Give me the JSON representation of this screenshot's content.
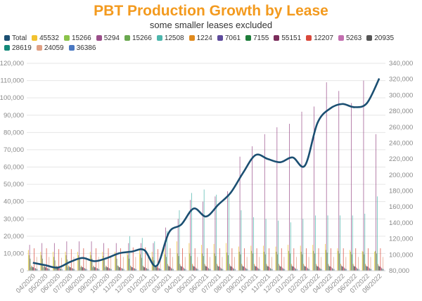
{
  "chart_data": {
    "type": "bar",
    "title": "PBT Production Growth by Lease",
    "subtitle": "some smaller leases excluded",
    "xlabel": "",
    "ylabel": "",
    "ylim": [
      0,
      120000
    ],
    "y2lim": [
      80000,
      340000
    ],
    "grid": true,
    "legend_position": "top-left",
    "categories": [
      "04/2020",
      "05/2020",
      "06/2020",
      "07/2020",
      "08/2020",
      "09/2020",
      "10/2020",
      "11/2020",
      "12/2020",
      "01/2021",
      "02/2021",
      "03/2021",
      "04/2021",
      "05/2021",
      "06/2021",
      "07/2021",
      "08/2021",
      "09/2021",
      "10/2021",
      "11/2021",
      "12/2021",
      "01/2022",
      "02/2022",
      "03/2022",
      "04/2022",
      "05/2022",
      "06/2022",
      "07/2022",
      "08/2022"
    ],
    "yticks": [
      "0",
      "10,000",
      "20,000",
      "30,000",
      "40,000",
      "50,000",
      "60,000",
      "70,000",
      "80,000",
      "90,000",
      "100,000",
      "110,000",
      "120,000"
    ],
    "y2ticks": [
      "80,000",
      "100,000",
      "120,000",
      "140,000",
      "160,000",
      "180,000",
      "200,000",
      "220,000",
      "240,000",
      "260,000",
      "280,000",
      "300,000",
      "320,000",
      "340,000"
    ],
    "line_series": {
      "name": "Total",
      "axis": "right",
      "color": "#1b4f72",
      "values": [
        90000,
        87000,
        84000,
        91000,
        96000,
        92000,
        96000,
        102000,
        104000,
        106000,
        86000,
        128000,
        138000,
        158000,
        148000,
        163000,
        178000,
        203000,
        225000,
        220000,
        216000,
        222000,
        212000,
        265000,
        283000,
        289000,
        285000,
        290000,
        321000
      ]
    },
    "series": [
      {
        "name": "45532",
        "color": "#f2c230",
        "values": [
          12000,
          11000,
          11000,
          11000,
          11000,
          11000,
          11000,
          11000,
          11500,
          12000,
          11000,
          16000,
          17000,
          16000,
          15000,
          15500,
          16000,
          14000,
          14500,
          14500,
          14000,
          15000,
          14500,
          15000,
          15500,
          13000,
          12000,
          11500,
          11000
        ]
      },
      {
        "name": "15266",
        "color": "#8bc34a",
        "values": [
          9000,
          9000,
          8000,
          9000,
          9000,
          9000,
          8500,
          9000,
          9000,
          9500,
          8000,
          9500,
          10000,
          10000,
          10000,
          10000,
          10500,
          11000,
          11500,
          11000,
          11000,
          11500,
          11000,
          11500,
          12000,
          11500,
          11000,
          11000,
          11500
        ]
      },
      {
        "name": "5294",
        "color": "#9b4f8a",
        "values": [
          15000,
          16000,
          16000,
          17000,
          17000,
          17000,
          16000,
          16000,
          16000,
          16000,
          16000,
          25000,
          30000,
          41000,
          40000,
          43000,
          46000,
          66000,
          72000,
          79000,
          83000,
          85000,
          92000,
          95000,
          109000,
          104000,
          97000,
          110000,
          79000
        ]
      },
      {
        "name": "15266",
        "color": "#6aa84f",
        "values": [
          7000,
          7000,
          6000,
          6500,
          7000,
          7000,
          6500,
          7000,
          7000,
          7500,
          6000,
          8000,
          8500,
          8500,
          8500,
          8500,
          9000,
          9500,
          10000,
          9500,
          9500,
          10000,
          9500,
          10000,
          10500,
          10000,
          9500,
          9500,
          10000
        ]
      },
      {
        "name": "12508",
        "color": "#4db6ac",
        "values": [
          2000,
          2000,
          2000,
          2000,
          2000,
          2000,
          2000,
          3000,
          20000,
          19000,
          17000,
          23000,
          35000,
          45000,
          47000,
          44000,
          43000,
          35000,
          31000,
          30000,
          29000,
          28000,
          30000,
          32000,
          32000,
          32000,
          32000,
          33000,
          43000
        ]
      },
      {
        "name": "1224",
        "color": "#e08a1e",
        "values": [
          3000,
          3000,
          3000,
          3000,
          3000,
          3000,
          3000,
          3000,
          3000,
          3000,
          3000,
          4000,
          4000,
          4000,
          4000,
          4000,
          4000,
          4000,
          4000,
          4000,
          4000,
          4000,
          4000,
          4000,
          4000,
          4000,
          4000,
          4000,
          4000
        ]
      },
      {
        "name": "7061",
        "color": "#5e4b9c",
        "values": [
          2500,
          2500,
          2500,
          2500,
          2500,
          2500,
          2500,
          2500,
          2500,
          2500,
          2500,
          3000,
          3000,
          3000,
          3000,
          3000,
          3000,
          3000,
          3000,
          3000,
          3000,
          3000,
          3000,
          3000,
          3000,
          3000,
          3000,
          3000,
          3000
        ]
      },
      {
        "name": "7155",
        "color": "#1e7d3a",
        "values": [
          2000,
          2000,
          2000,
          2000,
          2000,
          2000,
          2000,
          2000,
          2000,
          2000,
          2000,
          2500,
          2500,
          2500,
          2500,
          2500,
          2500,
          2500,
          2500,
          2500,
          2500,
          2500,
          2500,
          2500,
          2500,
          2500,
          2500,
          2500,
          2500
        ]
      },
      {
        "name": "55151",
        "color": "#7b2d5b",
        "values": [
          2000,
          2000,
          2000,
          2000,
          2000,
          2000,
          2000,
          2000,
          2000,
          2000,
          2000,
          2500,
          2500,
          2500,
          2500,
          2500,
          2500,
          2500,
          2500,
          2500,
          2500,
          2500,
          2500,
          2500,
          2500,
          2500,
          2500,
          2500,
          2500
        ]
      },
      {
        "name": "12207",
        "color": "#d9483b",
        "values": [
          13000,
          13000,
          12500,
          12500,
          13000,
          13000,
          13000,
          13000,
          13500,
          13500,
          12500,
          13000,
          13000,
          13000,
          13000,
          13000,
          13000,
          13000,
          13000,
          13000,
          13000,
          13000,
          13000,
          13000,
          13000,
          13000,
          13000,
          13000,
          13000
        ]
      },
      {
        "name": "5263",
        "color": "#c36fb0",
        "values": [
          1500,
          1500,
          1500,
          1500,
          1500,
          1500,
          1500,
          1500,
          1500,
          1500,
          1500,
          2000,
          2000,
          2000,
          2000,
          2000,
          2000,
          2000,
          2000,
          2000,
          2000,
          2000,
          2000,
          2000,
          2000,
          2000,
          2000,
          2000,
          2000
        ]
      },
      {
        "name": "20935",
        "color": "#555555",
        "values": [
          1500,
          1500,
          1500,
          1500,
          1500,
          1500,
          1500,
          1500,
          1500,
          1500,
          1500,
          1500,
          1500,
          1500,
          1500,
          1500,
          1500,
          1500,
          1500,
          1500,
          1500,
          1500,
          1500,
          1500,
          1500,
          1500,
          1500,
          1500,
          1500
        ]
      },
      {
        "name": "28619",
        "color": "#14897a",
        "values": [
          1000,
          1000,
          1000,
          1000,
          1000,
          1000,
          1000,
          1000,
          1000,
          1000,
          1000,
          1000,
          1000,
          1000,
          1000,
          1000,
          1000,
          1000,
          1000,
          1000,
          1000,
          1000,
          1000,
          1000,
          1000,
          1000,
          1000,
          1000,
          1000
        ]
      },
      {
        "name": "24059",
        "color": "#e0a084",
        "values": [
          8000,
          8000,
          7500,
          8000,
          8000,
          8000,
          8000,
          8000,
          8000,
          8000,
          7500,
          8000,
          8000,
          8000,
          8000,
          8000,
          8000,
          8000,
          8000,
          8000,
          8000,
          8000,
          8000,
          8000,
          8000,
          8000,
          8000,
          8000,
          8000
        ]
      },
      {
        "name": "36386",
        "color": "#4a78c2",
        "values": [
          1000,
          1000,
          1000,
          1000,
          1000,
          1000,
          1000,
          1000,
          1000,
          1000,
          1000,
          1000,
          1000,
          1000,
          1000,
          1000,
          1000,
          1000,
          1000,
          1000,
          1000,
          1000,
          1000,
          1000,
          1000,
          1000,
          1000,
          1000,
          1000
        ]
      }
    ]
  }
}
